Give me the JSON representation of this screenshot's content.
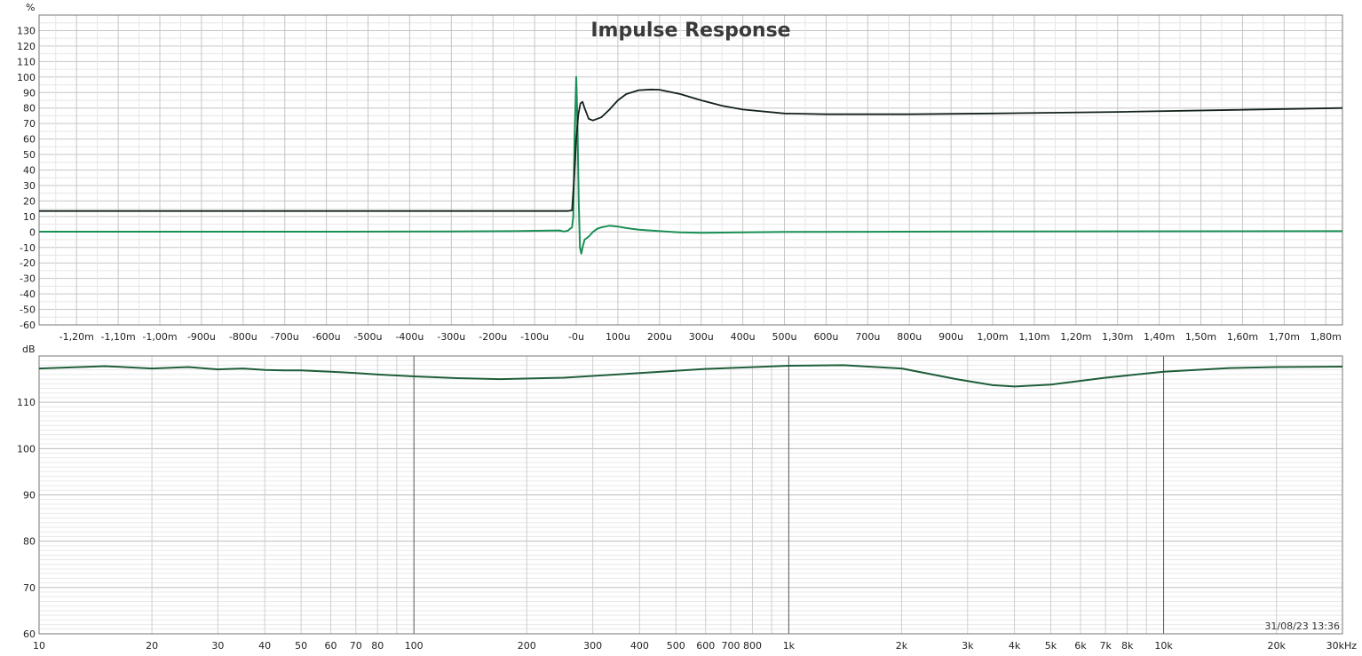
{
  "chart_data": [
    {
      "type": "line",
      "title": "Impulse Response",
      "ylabel": "%",
      "xlabel": "",
      "grid": true,
      "x_unit": "microseconds",
      "xlim": [
        -1290,
        1840
      ],
      "ylim": [
        -60,
        140
      ],
      "x_ticks": [
        {
          "v": -1200,
          "label": "-1,20m"
        },
        {
          "v": -1100,
          "label": "-1,10m"
        },
        {
          "v": -1000,
          "label": "-1,00m"
        },
        {
          "v": -900,
          "label": "-900u"
        },
        {
          "v": -800,
          "label": "-800u"
        },
        {
          "v": -700,
          "label": "-700u"
        },
        {
          "v": -600,
          "label": "-600u"
        },
        {
          "v": -500,
          "label": "-500u"
        },
        {
          "v": -400,
          "label": "-400u"
        },
        {
          "v": -300,
          "label": "-300u"
        },
        {
          "v": -200,
          "label": "-200u"
        },
        {
          "v": -100,
          "label": "-100u"
        },
        {
          "v": 0,
          "label": "-0u"
        },
        {
          "v": 100,
          "label": "100u"
        },
        {
          "v": 200,
          "label": "200u"
        },
        {
          "v": 300,
          "label": "300u"
        },
        {
          "v": 400,
          "label": "400u"
        },
        {
          "v": 500,
          "label": "500u"
        },
        {
          "v": 600,
          "label": "600u"
        },
        {
          "v": 700,
          "label": "700u"
        },
        {
          "v": 800,
          "label": "800u"
        },
        {
          "v": 900,
          "label": "900u"
        },
        {
          "v": 1000,
          "label": "1,00m"
        },
        {
          "v": 1100,
          "label": "1,10m"
        },
        {
          "v": 1200,
          "label": "1,20m"
        },
        {
          "v": 1300,
          "label": "1,30m"
        },
        {
          "v": 1400,
          "label": "1,40m"
        },
        {
          "v": 1500,
          "label": "1,50m"
        },
        {
          "v": 1600,
          "label": "1,60m"
        },
        {
          "v": 1700,
          "label": "1,70m"
        },
        {
          "v": 1800,
          "label": "1,80m"
        }
      ],
      "y_ticks": [
        {
          "v": 130,
          "label": "130"
        },
        {
          "v": 120,
          "label": "120"
        },
        {
          "v": 110,
          "label": "110"
        },
        {
          "v": 100,
          "label": "100"
        },
        {
          "v": 90,
          "label": "90"
        },
        {
          "v": 80,
          "label": "80"
        },
        {
          "v": 70,
          "label": "70"
        },
        {
          "v": 60,
          "label": "60"
        },
        {
          "v": 50,
          "label": "50"
        },
        {
          "v": 40,
          "label": "40"
        },
        {
          "v": 30,
          "label": "30"
        },
        {
          "v": 20,
          "label": "20"
        },
        {
          "v": 10,
          "label": "10"
        },
        {
          "v": 0,
          "label": "0"
        },
        {
          "v": -10,
          "label": "-10"
        },
        {
          "v": -20,
          "label": "-20"
        },
        {
          "v": -30,
          "label": "-30"
        },
        {
          "v": -40,
          "label": "-40"
        },
        {
          "v": -50,
          "label": "-50"
        },
        {
          "v": -60,
          "label": "-60"
        }
      ],
      "series": [
        {
          "color": "#1a8f55",
          "x": [
            -1290,
            -600,
            -300,
            -150,
            -80,
            -40,
            -30,
            -20,
            -15,
            -10,
            -7,
            -4,
            0,
            3,
            6,
            9,
            12,
            15,
            20,
            30,
            40,
            50,
            60,
            70,
            80,
            100,
            120,
            150,
            200,
            250,
            300,
            400,
            500,
            700,
            1000,
            1300,
            1840
          ],
          "y": [
            0.2,
            0.2,
            0.3,
            0.5,
            0.8,
            1.0,
            0.3,
            0.8,
            2,
            3,
            10,
            60,
            100,
            70,
            20,
            -10,
            -14,
            -10,
            -5,
            -3,
            0,
            2,
            3,
            3.5,
            4,
            3.5,
            2.5,
            1.5,
            0.5,
            -0.3,
            -0.6,
            -0.3,
            0,
            0.1,
            0.3,
            0.4,
            0.5
          ]
        },
        {
          "color": "#122218",
          "x": [
            -1290,
            -600,
            -20,
            -10,
            -5,
            0,
            5,
            10,
            15,
            20,
            30,
            40,
            60,
            80,
            100,
            120,
            150,
            180,
            200,
            250,
            300,
            350,
            400,
            500,
            600,
            800,
            1000,
            1300,
            1840
          ],
          "y": [
            13.5,
            13.5,
            13.5,
            14,
            35,
            60,
            76,
            83,
            84,
            80,
            73,
            72,
            74,
            79,
            85,
            89,
            91.5,
            92,
            91.8,
            89,
            85,
            81.5,
            79,
            76.5,
            76,
            76,
            76.5,
            77.5,
            80
          ]
        }
      ]
    },
    {
      "type": "line",
      "title": "",
      "ylabel": "dB",
      "xlabel": "",
      "grid": true,
      "x_scale": "log",
      "x_unit": "Hz",
      "xlim": [
        10,
        30000
      ],
      "ylim": [
        60,
        120
      ],
      "x_ticks": [
        {
          "v": 10,
          "label": "10"
        },
        {
          "v": 20,
          "label": "20"
        },
        {
          "v": 30,
          "label": "30"
        },
        {
          "v": 40,
          "label": "40"
        },
        {
          "v": 50,
          "label": "50"
        },
        {
          "v": 60,
          "label": "60"
        },
        {
          "v": 70,
          "label": "70"
        },
        {
          "v": 80,
          "label": "80"
        },
        {
          "v": 100,
          "label": "100"
        },
        {
          "v": 200,
          "label": "200"
        },
        {
          "v": 300,
          "label": "300"
        },
        {
          "v": 400,
          "label": "400"
        },
        {
          "v": 500,
          "label": "500"
        },
        {
          "v": 600,
          "label": "600"
        },
        {
          "v": 700,
          "label": "700"
        },
        {
          "v": 800,
          "label": "800"
        },
        {
          "v": 1000,
          "label": "1k"
        },
        {
          "v": 2000,
          "label": "2k"
        },
        {
          "v": 3000,
          "label": "3k"
        },
        {
          "v": 4000,
          "label": "4k"
        },
        {
          "v": 5000,
          "label": "5k"
        },
        {
          "v": 6000,
          "label": "6k"
        },
        {
          "v": 7000,
          "label": "7k"
        },
        {
          "v": 8000,
          "label": "8k"
        },
        {
          "v": 10000,
          "label": "10k"
        },
        {
          "v": 20000,
          "label": "20k"
        },
        {
          "v": 30000,
          "label": "30kHz"
        }
      ],
      "y_ticks": [
        {
          "v": 110,
          "label": "110"
        },
        {
          "v": 100,
          "label": "100"
        },
        {
          "v": 90,
          "label": "90"
        },
        {
          "v": 80,
          "label": "80"
        },
        {
          "v": 70,
          "label": "70"
        },
        {
          "v": 60,
          "label": "60"
        }
      ],
      "series": [
        {
          "color": "#1f5e3a",
          "x": [
            10,
            15,
            20,
            25,
            30,
            35,
            40,
            45,
            50,
            60,
            70,
            80,
            100,
            130,
            170,
            250,
            400,
            600,
            1000,
            1400,
            2000,
            2800,
            3500,
            4000,
            5000,
            7000,
            10000,
            15000,
            20000,
            30000
          ],
          "y": [
            117.3,
            117.8,
            117.3,
            117.6,
            117.1,
            117.3,
            117.0,
            116.9,
            116.9,
            116.6,
            116.3,
            116.0,
            115.6,
            115.2,
            115.0,
            115.3,
            116.3,
            117.2,
            117.9,
            118.0,
            117.3,
            115.0,
            113.7,
            113.4,
            113.8,
            115.3,
            116.6,
            117.4,
            117.6,
            117.7
          ]
        }
      ]
    }
  ],
  "timestamp": "31/08/23 13:36"
}
